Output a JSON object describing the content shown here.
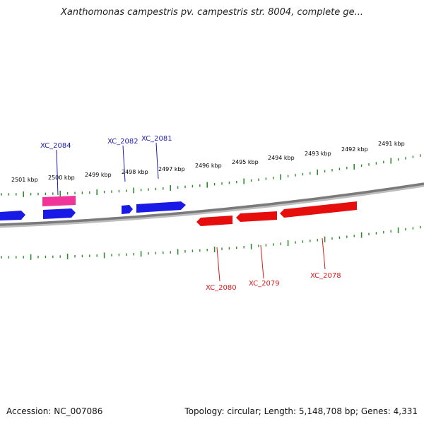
{
  "title": "Xanthomonas campestris pv. campestris str. 8004, complete ge...",
  "footer": {
    "accession": "Accession: NC_007086",
    "stats": "Topology: circular; Length: 5,148,708 bp; Genes: 4,331"
  },
  "colors": {
    "backbone": "#808080",
    "ticks": "#2e8b2e",
    "forward_gene": "#1a1ae6",
    "reverse_gene": "#e60d0d",
    "highlight_gene": "#f0349a",
    "forward_label": "#1a1ab3",
    "reverse_label": "#d41a1a"
  },
  "tick_labels": [
    "2501 kbp",
    "2500 kbp",
    "2499 kbp",
    "2498 kbp",
    "2497 kbp",
    "2496 kbp",
    "2495 kbp",
    "2494 kbp",
    "2493 kbp",
    "2492 kbp",
    "2491 kbp"
  ],
  "gene_labels": {
    "forward": [
      "XC_2084",
      "XC_2082",
      "XC_2081"
    ],
    "reverse": [
      "XC_2080",
      "XC_2079",
      "XC_2078"
    ]
  }
}
